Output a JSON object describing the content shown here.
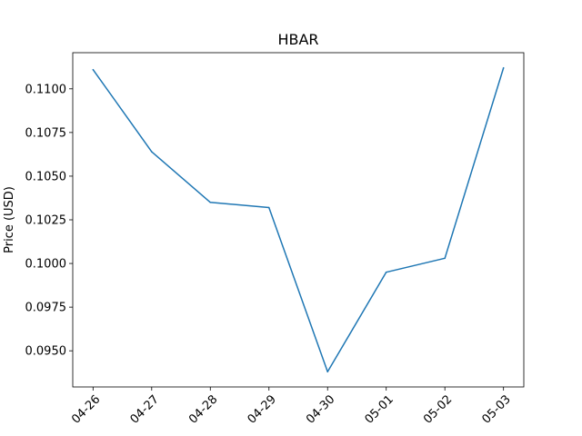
{
  "chart_data": {
    "type": "line",
    "title": "HBAR",
    "xlabel": "",
    "ylabel": "Price (USD)",
    "categories": [
      "04-26",
      "04-27",
      "04-28",
      "04-29",
      "04-30",
      "05-01",
      "05-02",
      "05-03"
    ],
    "series": [
      {
        "values": [
          0.1111,
          0.1064,
          0.1035,
          0.1032,
          0.0938,
          0.0995,
          0.1003,
          0.1112
        ],
        "color": "#1f77b4"
      }
    ],
    "yticks": [
      "0.0950",
      "0.0975",
      "0.1000",
      "0.1025",
      "0.1050",
      "0.1075",
      "0.1100"
    ],
    "ylim": [
      0.09293,
      0.11207
    ],
    "grid": false,
    "legend": "none"
  }
}
